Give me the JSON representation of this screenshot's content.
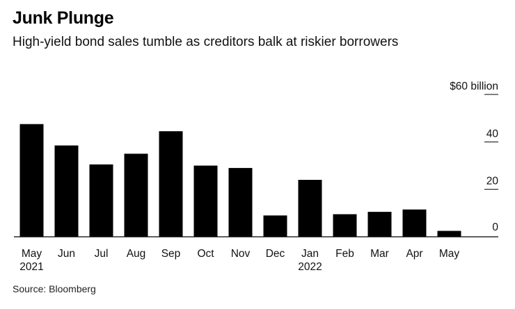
{
  "title": "Junk Plunge",
  "subtitle": "High-yield bond sales tumble as creditors balk at riskier borrowers",
  "source": "Source: Bloomberg",
  "chart_data": {
    "type": "bar",
    "categories": [
      "May",
      "Jun",
      "Jul",
      "Aug",
      "Sep",
      "Oct",
      "Nov",
      "Dec",
      "Jan",
      "Feb",
      "Mar",
      "Apr",
      "May"
    ],
    "category_sublabels": [
      "2021",
      "",
      "",
      "",
      "",
      "",
      "",
      "",
      "2022",
      "",
      "",
      "",
      ""
    ],
    "values": [
      47.5,
      38.5,
      30.5,
      35,
      44.5,
      30,
      29,
      9,
      24,
      9.5,
      10.5,
      11.5,
      2.5
    ],
    "ylim": [
      0,
      60
    ],
    "yticks": [
      0,
      20,
      40,
      60
    ],
    "ytick_labels": [
      "0",
      "20",
      "40",
      "$60 billion"
    ],
    "axis_side": "right",
    "bar_color": "#000000",
    "grid": false
  }
}
